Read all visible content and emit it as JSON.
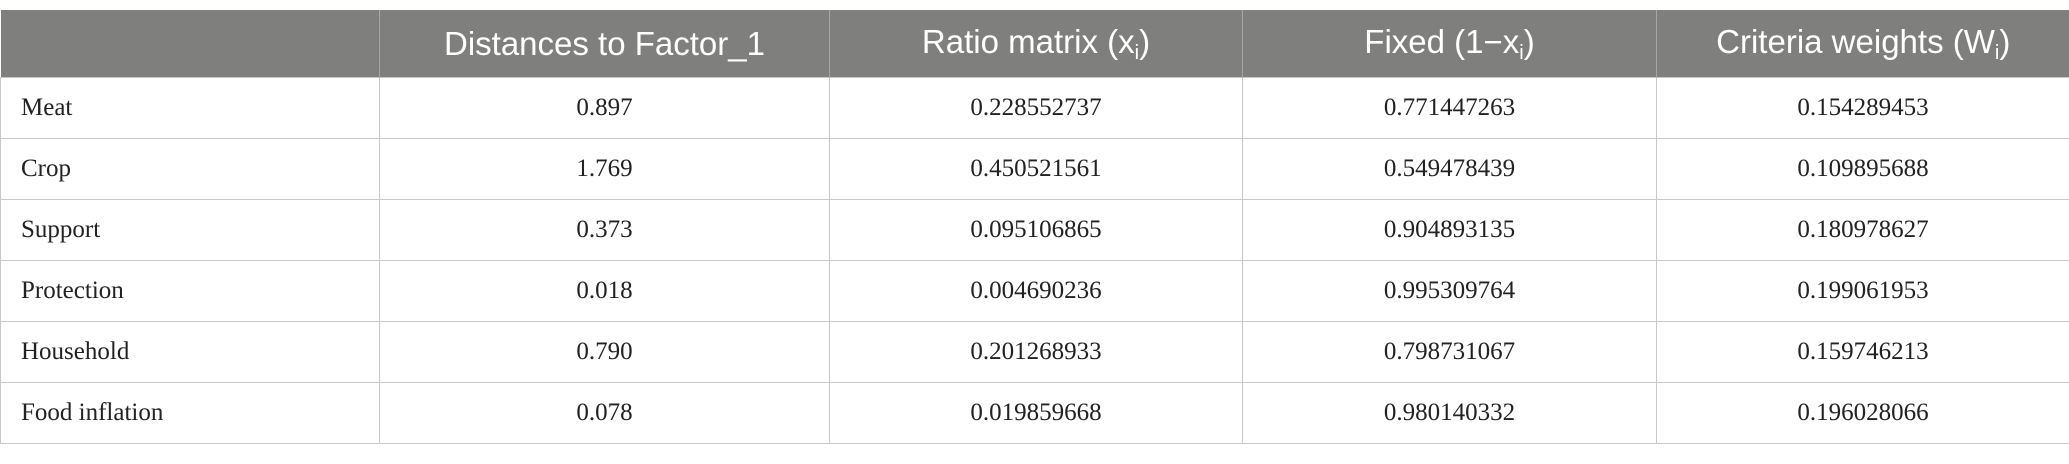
{
  "table": {
    "headers": [
      {
        "text": "Distances to Factor_1"
      },
      {
        "text": "Ratio matrix (x",
        "sub": "i",
        "tail": ")"
      },
      {
        "text": "Fixed (1−x",
        "sub": "i",
        "tail": ")"
      },
      {
        "text": "Criteria weights (W",
        "sub": "i",
        "tail": ")"
      }
    ],
    "rows": [
      [
        "Meat",
        "0.897",
        "0.228552737",
        "0.771447263",
        "0.154289453"
      ],
      [
        "Crop",
        "1.769",
        "0.450521561",
        "0.549478439",
        "0.109895688"
      ],
      [
        "Support",
        "0.373",
        "0.095106865",
        "0.904893135",
        "0.180978627"
      ],
      [
        "Protection",
        "0.018",
        "0.004690236",
        "0.995309764",
        "0.199061953"
      ],
      [
        "Household",
        "0.790",
        "0.201268933",
        "0.798731067",
        "0.159746213"
      ],
      [
        "Food inflation",
        "0.078",
        "0.019859668",
        "0.980140332",
        "0.196028066"
      ]
    ]
  }
}
